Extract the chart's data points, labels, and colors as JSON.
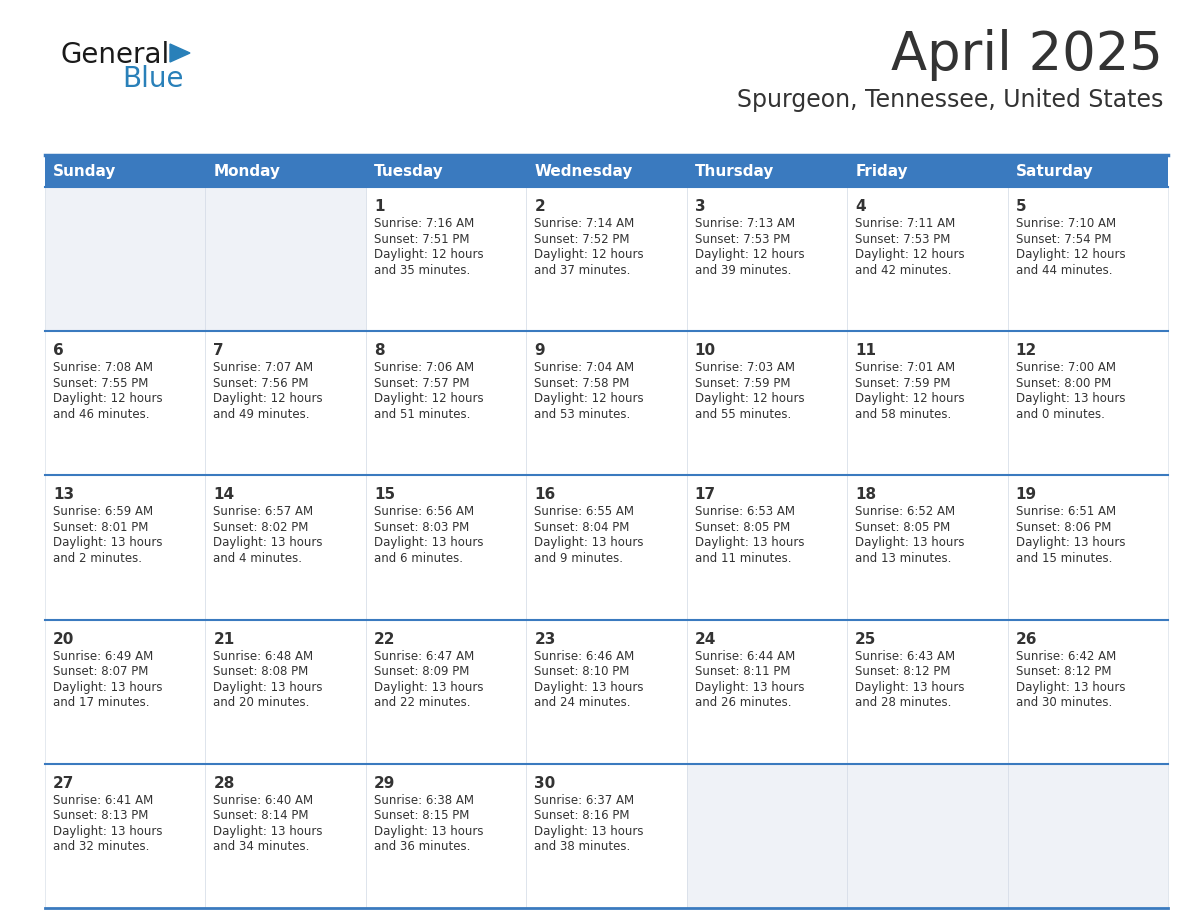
{
  "title": "April 2025",
  "subtitle": "Spurgeon, Tennessee, United States",
  "header_bg_color": "#3a7abf",
  "header_text_color": "#ffffff",
  "cell_bg_white": "#ffffff",
  "cell_bg_gray": "#eff2f7",
  "text_color": "#333333",
  "line_color": "#3a7abf",
  "days_of_week": [
    "Sunday",
    "Monday",
    "Tuesday",
    "Wednesday",
    "Thursday",
    "Friday",
    "Saturday"
  ],
  "calendar_data": [
    [
      {
        "day": "",
        "sunrise": "",
        "sunset": "",
        "daylight_hours": "",
        "daylight_minutes": ""
      },
      {
        "day": "",
        "sunrise": "",
        "sunset": "",
        "daylight_hours": "",
        "daylight_minutes": ""
      },
      {
        "day": "1",
        "sunrise": "7:16 AM",
        "sunset": "7:51 PM",
        "daylight_hours": "12",
        "daylight_minutes": "35"
      },
      {
        "day": "2",
        "sunrise": "7:14 AM",
        "sunset": "7:52 PM",
        "daylight_hours": "12",
        "daylight_minutes": "37"
      },
      {
        "day": "3",
        "sunrise": "7:13 AM",
        "sunset": "7:53 PM",
        "daylight_hours": "12",
        "daylight_minutes": "39"
      },
      {
        "day": "4",
        "sunrise": "7:11 AM",
        "sunset": "7:53 PM",
        "daylight_hours": "12",
        "daylight_minutes": "42"
      },
      {
        "day": "5",
        "sunrise": "7:10 AM",
        "sunset": "7:54 PM",
        "daylight_hours": "12",
        "daylight_minutes": "44"
      }
    ],
    [
      {
        "day": "6",
        "sunrise": "7:08 AM",
        "sunset": "7:55 PM",
        "daylight_hours": "12",
        "daylight_minutes": "46"
      },
      {
        "day": "7",
        "sunrise": "7:07 AM",
        "sunset": "7:56 PM",
        "daylight_hours": "12",
        "daylight_minutes": "49"
      },
      {
        "day": "8",
        "sunrise": "7:06 AM",
        "sunset": "7:57 PM",
        "daylight_hours": "12",
        "daylight_minutes": "51"
      },
      {
        "day": "9",
        "sunrise": "7:04 AM",
        "sunset": "7:58 PM",
        "daylight_hours": "12",
        "daylight_minutes": "53"
      },
      {
        "day": "10",
        "sunrise": "7:03 AM",
        "sunset": "7:59 PM",
        "daylight_hours": "12",
        "daylight_minutes": "55"
      },
      {
        "day": "11",
        "sunrise": "7:01 AM",
        "sunset": "7:59 PM",
        "daylight_hours": "12",
        "daylight_minutes": "58"
      },
      {
        "day": "12",
        "sunrise": "7:00 AM",
        "sunset": "8:00 PM",
        "daylight_hours": "13",
        "daylight_minutes": "0"
      }
    ],
    [
      {
        "day": "13",
        "sunrise": "6:59 AM",
        "sunset": "8:01 PM",
        "daylight_hours": "13",
        "daylight_minutes": "2"
      },
      {
        "day": "14",
        "sunrise": "6:57 AM",
        "sunset": "8:02 PM",
        "daylight_hours": "13",
        "daylight_minutes": "4"
      },
      {
        "day": "15",
        "sunrise": "6:56 AM",
        "sunset": "8:03 PM",
        "daylight_hours": "13",
        "daylight_minutes": "6"
      },
      {
        "day": "16",
        "sunrise": "6:55 AM",
        "sunset": "8:04 PM",
        "daylight_hours": "13",
        "daylight_minutes": "9"
      },
      {
        "day": "17",
        "sunrise": "6:53 AM",
        "sunset": "8:05 PM",
        "daylight_hours": "13",
        "daylight_minutes": "11"
      },
      {
        "day": "18",
        "sunrise": "6:52 AM",
        "sunset": "8:05 PM",
        "daylight_hours": "13",
        "daylight_minutes": "13"
      },
      {
        "day": "19",
        "sunrise": "6:51 AM",
        "sunset": "8:06 PM",
        "daylight_hours": "13",
        "daylight_minutes": "15"
      }
    ],
    [
      {
        "day": "20",
        "sunrise": "6:49 AM",
        "sunset": "8:07 PM",
        "daylight_hours": "13",
        "daylight_minutes": "17"
      },
      {
        "day": "21",
        "sunrise": "6:48 AM",
        "sunset": "8:08 PM",
        "daylight_hours": "13",
        "daylight_minutes": "20"
      },
      {
        "day": "22",
        "sunrise": "6:47 AM",
        "sunset": "8:09 PM",
        "daylight_hours": "13",
        "daylight_minutes": "22"
      },
      {
        "day": "23",
        "sunrise": "6:46 AM",
        "sunset": "8:10 PM",
        "daylight_hours": "13",
        "daylight_minutes": "24"
      },
      {
        "day": "24",
        "sunrise": "6:44 AM",
        "sunset": "8:11 PM",
        "daylight_hours": "13",
        "daylight_minutes": "26"
      },
      {
        "day": "25",
        "sunrise": "6:43 AM",
        "sunset": "8:12 PM",
        "daylight_hours": "13",
        "daylight_minutes": "28"
      },
      {
        "day": "26",
        "sunrise": "6:42 AM",
        "sunset": "8:12 PM",
        "daylight_hours": "13",
        "daylight_minutes": "30"
      }
    ],
    [
      {
        "day": "27",
        "sunrise": "6:41 AM",
        "sunset": "8:13 PM",
        "daylight_hours": "13",
        "daylight_minutes": "32"
      },
      {
        "day": "28",
        "sunrise": "6:40 AM",
        "sunset": "8:14 PM",
        "daylight_hours": "13",
        "daylight_minutes": "34"
      },
      {
        "day": "29",
        "sunrise": "6:38 AM",
        "sunset": "8:15 PM",
        "daylight_hours": "13",
        "daylight_minutes": "36"
      },
      {
        "day": "30",
        "sunrise": "6:37 AM",
        "sunset": "8:16 PM",
        "daylight_hours": "13",
        "daylight_minutes": "38"
      },
      {
        "day": "",
        "sunrise": "",
        "sunset": "",
        "daylight_hours": "",
        "daylight_minutes": ""
      },
      {
        "day": "",
        "sunrise": "",
        "sunset": "",
        "daylight_hours": "",
        "daylight_minutes": ""
      },
      {
        "day": "",
        "sunrise": "",
        "sunset": "",
        "daylight_hours": "",
        "daylight_minutes": ""
      }
    ]
  ],
  "logo_text_general": "General",
  "logo_text_blue": "Blue",
  "logo_general_color": "#1a1a1a",
  "logo_blue_color": "#2980b9",
  "logo_triangle_color": "#2980b9"
}
